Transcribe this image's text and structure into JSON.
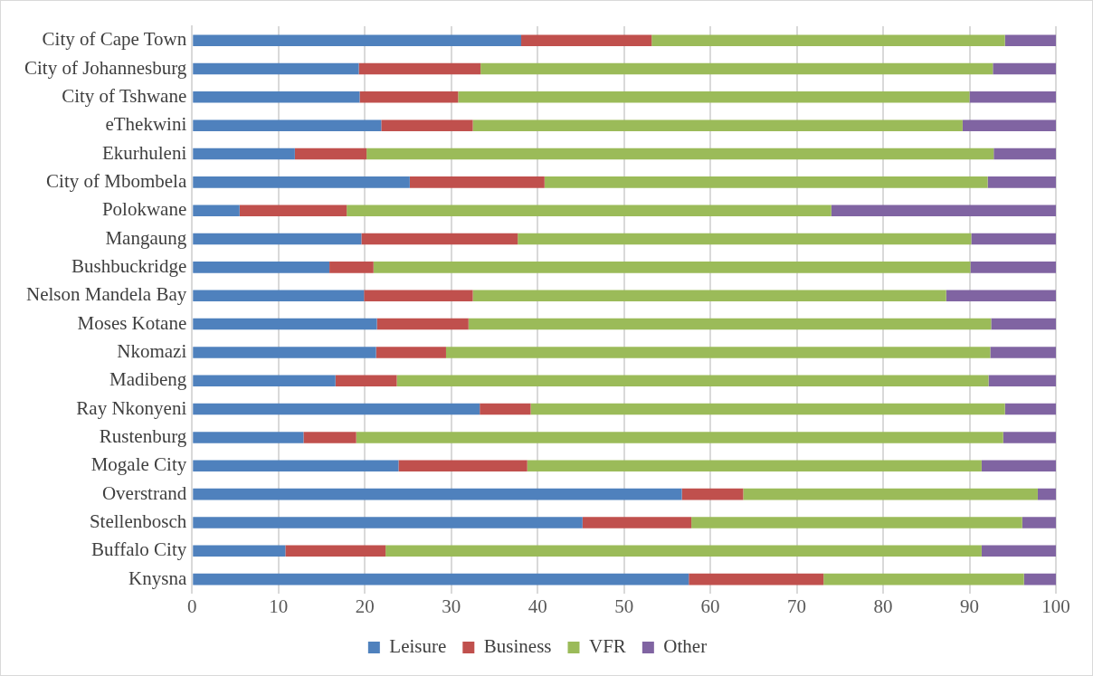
{
  "chart_data": {
    "type": "bar",
    "orientation": "horizontal",
    "stacked": true,
    "categories": [
      "City of Cape Town",
      "City of Johannesburg",
      "City of Tshwane",
      "eThekwini",
      "Ekurhuleni",
      "City of Mbombela",
      "Polokwane",
      "Mangaung",
      "Bushbuckridge",
      "Nelson Mandela Bay",
      "Moses Kotane",
      "Nkomazi",
      "Madibeng",
      "Ray Nkonyeni",
      "Rustenburg",
      "Mogale City",
      "Overstrand",
      "Stellenbosch",
      "Buffalo City",
      "Knysna"
    ],
    "series": [
      {
        "name": "Leisure",
        "color": "#4f81bd",
        "values": [
          38.1,
          19.3,
          19.4,
          21.9,
          11.9,
          25.2,
          5.5,
          19.6,
          15.9,
          19.9,
          21.4,
          21.3,
          16.6,
          33.3,
          12.9,
          23.9,
          56.7,
          45.2,
          10.8,
          57.5
        ]
      },
      {
        "name": "Business",
        "color": "#c0504d",
        "values": [
          15.1,
          14.1,
          11.4,
          10.6,
          8.3,
          15.6,
          12.4,
          18.1,
          5.1,
          12.6,
          10.6,
          8.1,
          7.1,
          5.9,
          6.1,
          14.9,
          7.1,
          12.6,
          11.6,
          15.6
        ]
      },
      {
        "name": "VFR",
        "color": "#9bbb59",
        "values": [
          40.9,
          59.3,
          59.2,
          56.7,
          72.6,
          51.3,
          56.1,
          52.5,
          69.1,
          54.8,
          60.5,
          63.0,
          68.5,
          54.9,
          74.9,
          52.6,
          34.1,
          38.3,
          69.0,
          23.2
        ]
      },
      {
        "name": "Other",
        "color": "#8064a2",
        "values": [
          5.9,
          7.3,
          10.0,
          10.8,
          7.2,
          7.9,
          26.0,
          9.8,
          9.9,
          12.7,
          7.5,
          7.6,
          7.8,
          5.9,
          6.1,
          8.6,
          2.1,
          3.9,
          8.6,
          3.7
        ]
      }
    ],
    "xlim": [
      0,
      100
    ],
    "xticks": [
      0,
      10,
      20,
      30,
      40,
      50,
      60,
      70,
      80,
      90,
      100
    ],
    "grid": "x",
    "legend": "bottom"
  }
}
